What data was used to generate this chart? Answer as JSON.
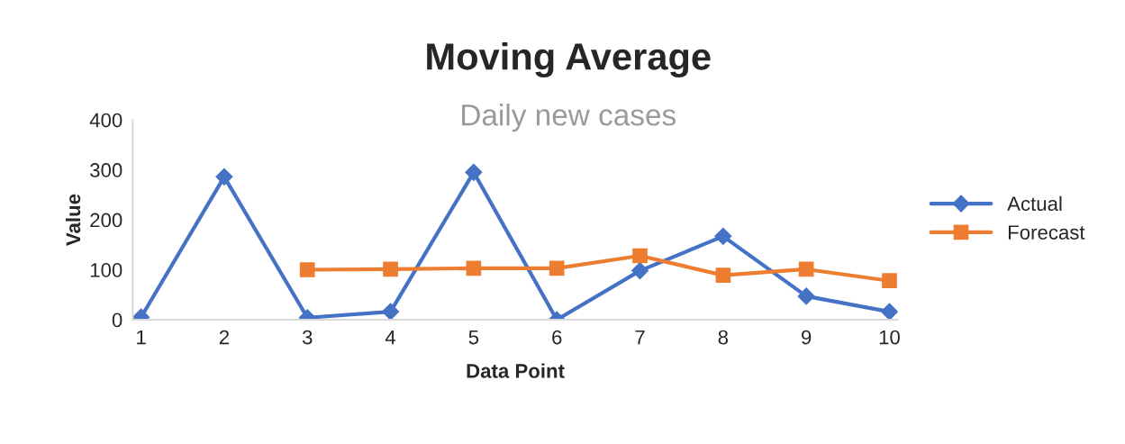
{
  "chart_data": {
    "type": "line",
    "title": "Moving Average",
    "subtitle": "Daily new cases",
    "xlabel": "Data Point",
    "ylabel": "Value",
    "categories": [
      "1",
      "2",
      "3",
      "4",
      "5",
      "6",
      "7",
      "8",
      "9",
      "10"
    ],
    "series": [
      {
        "name": "Actual",
        "color": "#4472c4",
        "marker": "diamond",
        "values": [
          5,
          286,
          4,
          16,
          295,
          0,
          98,
          167,
          47,
          16
        ]
      },
      {
        "name": "Forecast",
        "color": "#ed7d31",
        "marker": "square",
        "values": [
          null,
          null,
          100,
          101,
          103,
          103,
          128,
          89,
          101,
          78
        ]
      }
    ],
    "ylim": [
      0,
      400
    ],
    "yticks": [
      0,
      100,
      200,
      300,
      400
    ],
    "grid": false,
    "legend": "right",
    "line_style": "solid"
  }
}
